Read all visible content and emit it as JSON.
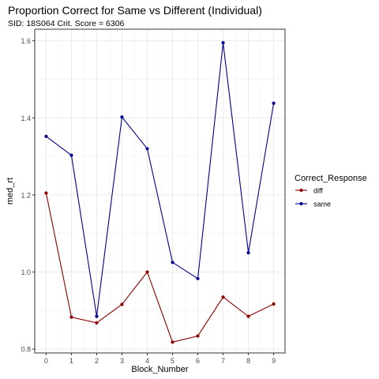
{
  "chart_data": {
    "type": "line",
    "title": "Proportion Correct for Same vs Different (Individual)",
    "subtitle": "SID:  18S064 Crit. Score =  6306",
    "xlabel": "Block_Number",
    "ylabel": "med_rt",
    "x": [
      0,
      1,
      2,
      3,
      4,
      5,
      6,
      7,
      8,
      9
    ],
    "xlim": [
      -0.45,
      9.45
    ],
    "ylim": [
      0.79,
      1.63
    ],
    "yticks": [
      0.8,
      1.0,
      1.2,
      1.4,
      1.6
    ],
    "yticklabels": [
      "0.8",
      "1.0",
      "1.2",
      "1.4",
      "1.6"
    ],
    "grid": true,
    "legend": {
      "title": "Correct_Response",
      "position": "right"
    },
    "series": [
      {
        "name": "diff",
        "color": "#8B0000",
        "values": [
          1.205,
          0.883,
          0.868,
          0.916,
          1.0,
          0.818,
          0.834,
          0.935,
          0.885,
          0.917
        ]
      },
      {
        "name": "same",
        "color": "#00008B",
        "values": [
          1.352,
          1.303,
          0.885,
          1.402,
          1.32,
          1.025,
          0.983,
          1.595,
          1.05,
          1.438
        ]
      }
    ]
  }
}
